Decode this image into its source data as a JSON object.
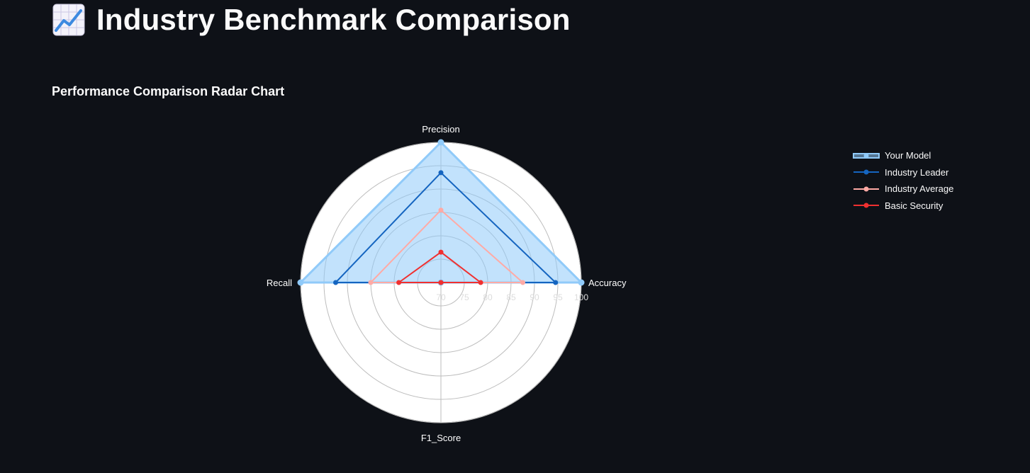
{
  "page": {
    "title": "Industry Benchmark Comparison",
    "title_icon": "chart-increasing-icon"
  },
  "section": {
    "title": "Performance Comparison Radar Chart"
  },
  "chart_data": {
    "type": "radar",
    "axes": [
      "Precision",
      "Accuracy",
      "F1_Score",
      "Recall"
    ],
    "radial_range": [
      70,
      100
    ],
    "radial_ticks": [
      "70",
      "75",
      "80",
      "85",
      "90",
      "95",
      "100"
    ],
    "grid": true,
    "legend_position": "top-right",
    "series": [
      {
        "name": "Your Model",
        "values": [
          100,
          100,
          70,
          100
        ],
        "color": "#90caf9",
        "fill": "rgba(144,202,249,0.55)"
      },
      {
        "name": "Industry Leader",
        "values": [
          93.5,
          94.5,
          70,
          92.5
        ],
        "color": "#1565c0"
      },
      {
        "name": "Industry Average",
        "values": [
          85.5,
          87.5,
          70,
          85
        ],
        "color": "#ffaaa5"
      },
      {
        "name": "Basic Security",
        "values": [
          76.5,
          78.5,
          70,
          79
        ],
        "color": "#f03030"
      }
    ]
  }
}
